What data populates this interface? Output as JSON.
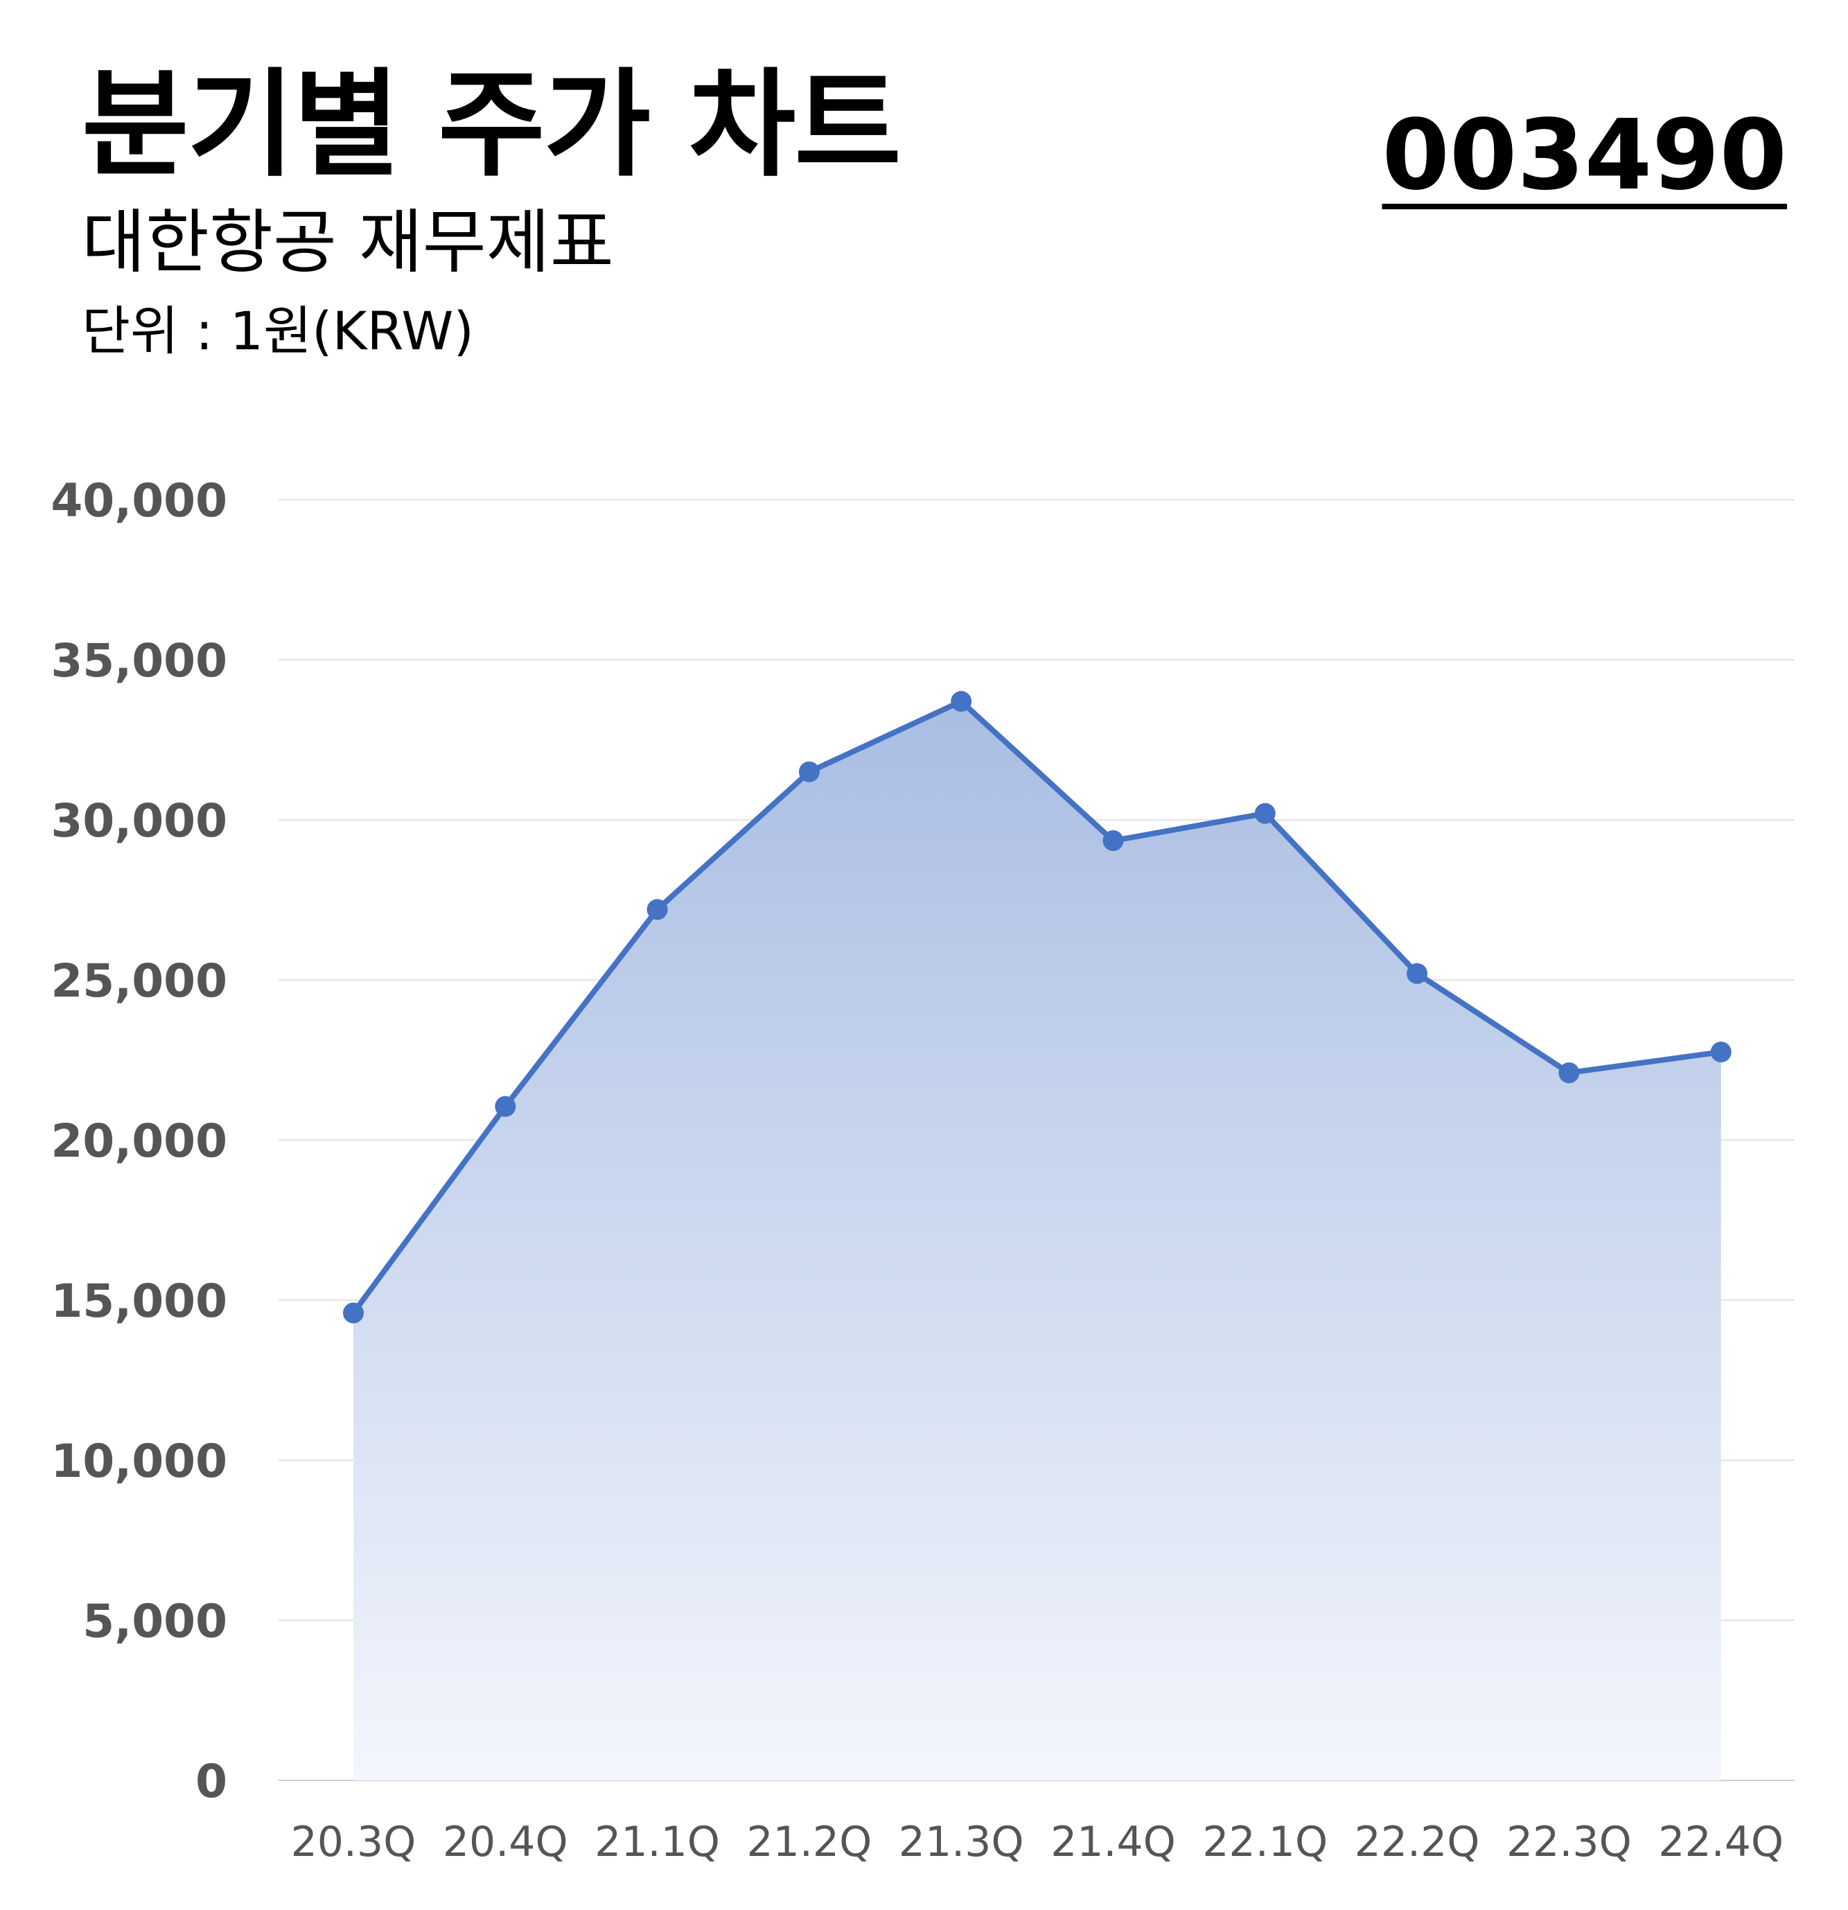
{
  "header": {
    "title": "분기별 주가 차트",
    "subtitle": "대한항공 재무제표",
    "unit": "단위 : 1원(KRW)",
    "code": "003490"
  },
  "colors": {
    "line": "#4472c4",
    "area_top": "#a9bde3",
    "area_bottom": "#f3f6fc",
    "grid": "#e3e3e3",
    "tick_text": "#555555"
  },
  "chart_data": {
    "type": "area",
    "categories": [
      "20.3Q",
      "20.4Q",
      "21.1Q",
      "21.2Q",
      "21.3Q",
      "21.4Q",
      "22.1Q",
      "22.2Q",
      "22.3Q",
      "22.4Q"
    ],
    "series": [
      {
        "values": [
          14600,
          21050,
          27200,
          31500,
          33700,
          29350,
          30200,
          25200,
          22100,
          22750
        ]
      }
    ],
    "ylim": [
      0,
      40000
    ],
    "yticks": [
      0,
      5000,
      10000,
      15000,
      20000,
      25000,
      30000,
      35000,
      40000
    ],
    "ytick_labels": [
      "0",
      "5,000",
      "10,000",
      "15,000",
      "20,000",
      "25,000",
      "30,000",
      "35,000",
      "40,000"
    ],
    "markers": true,
    "grid": true,
    "legend": false
  }
}
